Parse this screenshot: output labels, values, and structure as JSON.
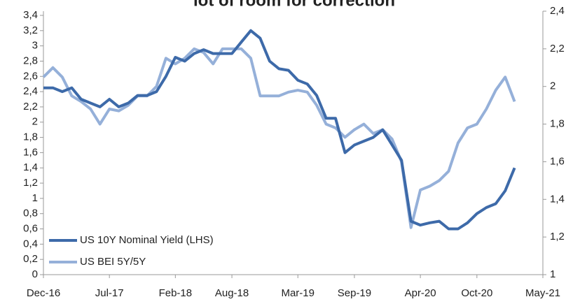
{
  "chart_data": {
    "type": "line",
    "title": "lot of room for correction",
    "categories": [
      "Dec-16",
      "Jan-17",
      "Feb-17",
      "Mar-17",
      "Apr-17",
      "May-17",
      "Jun-17",
      "Jul-17",
      "Aug-17",
      "Sep-17",
      "Oct-17",
      "Nov-17",
      "Dec-17",
      "Jan-18",
      "Feb-18",
      "Mar-18",
      "Apr-18",
      "May-18",
      "Jun-18",
      "Jul-18",
      "Aug-18",
      "Sep-18",
      "Oct-18",
      "Nov-18",
      "Dec-18",
      "Jan-19",
      "Feb-19",
      "Mar-19",
      "Apr-19",
      "May-19",
      "Jun-19",
      "Jul-19",
      "Aug-19",
      "Sep-19",
      "Oct-19",
      "Nov-19",
      "Dec-19",
      "Jan-20",
      "Feb-20",
      "Mar-20",
      "Apr-20",
      "May-20",
      "Jun-20",
      "Jul-20",
      "Aug-20",
      "Sep-20",
      "Oct-20",
      "Nov-20",
      "Dec-20",
      "Jan-21",
      "Feb-21",
      "Mar-21",
      "Apr-21",
      "May-21"
    ],
    "xticks": [
      "Dec-16",
      "Jul-17",
      "Feb-18",
      "Aug-18",
      "Mar-19",
      "Sep-19",
      "Apr-20",
      "Oct-20",
      "May-21"
    ],
    "series": [
      {
        "name": "US 10Y Nominal Yield (LHS)",
        "color": "#3d6aa9",
        "values": [
          2.45,
          2.45,
          2.4,
          2.45,
          2.3,
          2.25,
          2.2,
          2.3,
          2.2,
          2.25,
          2.35,
          2.35,
          2.4,
          2.6,
          2.85,
          2.8,
          2.9,
          2.95,
          2.9,
          2.9,
          2.9,
          3.05,
          3.2,
          3.1,
          2.8,
          2.7,
          2.68,
          2.55,
          2.5,
          2.35,
          2.05,
          2.05,
          1.6,
          1.7,
          1.75,
          1.8,
          1.9,
          1.7,
          1.5,
          0.7,
          0.65,
          0.68,
          0.7,
          0.6,
          0.6,
          0.68,
          0.8,
          0.88,
          0.93,
          1.1,
          1.4,
          null,
          null,
          null
        ]
      },
      {
        "name": "US BEI 5Y/5Y",
        "color": "#95b0d9",
        "axis": "y2",
        "values": [
          2.05,
          2.1,
          2.05,
          1.95,
          1.92,
          1.88,
          1.8,
          1.88,
          1.87,
          1.9,
          1.95,
          1.95,
          2.0,
          2.15,
          2.12,
          2.15,
          2.2,
          2.18,
          2.12,
          2.2,
          2.2,
          2.2,
          2.15,
          1.95,
          1.95,
          1.95,
          1.97,
          1.98,
          1.97,
          1.9,
          1.8,
          1.78,
          1.73,
          1.77,
          1.8,
          1.75,
          1.77,
          1.72,
          1.6,
          1.25,
          1.45,
          1.47,
          1.5,
          1.55,
          1.7,
          1.78,
          1.8,
          1.88,
          1.98,
          2.05,
          1.92,
          null,
          null,
          null
        ]
      }
    ],
    "ylim": [
      0,
      3.4
    ],
    "yticks": [
      0,
      {
        "value": 0.2,
        "label": "0,2"
      },
      {
        "value": 0.4,
        "label": "0,4"
      },
      {
        "value": 0.6,
        "label": "0,6"
      },
      {
        "value": 0.8,
        "label": "0,8"
      },
      1,
      {
        "value": 1.2,
        "label": "1,2"
      },
      {
        "value": 1.4,
        "label": "1,4"
      },
      {
        "value": 1.6,
        "label": "1,6"
      },
      {
        "value": 1.8,
        "label": "1,8"
      },
      2,
      {
        "value": 2.2,
        "label": "2,2"
      },
      {
        "value": 2.4,
        "label": "2,4"
      },
      {
        "value": 2.6,
        "label": "2,6"
      },
      {
        "value": 2.8,
        "label": "2,8"
      },
      3,
      {
        "value": 3.2,
        "label": "3,2"
      },
      {
        "value": 3.4,
        "label": "3,4"
      }
    ],
    "y2lim": [
      1,
      2.4
    ],
    "y2ticks": [
      1,
      {
        "value": 1.2,
        "label": "1,2"
      },
      {
        "value": 1.4,
        "label": "1,4"
      },
      {
        "value": 1.6,
        "label": "1,6"
      },
      {
        "value": 1.8,
        "label": "1,8"
      },
      2,
      {
        "value": 2.2,
        "label": "2,2"
      },
      {
        "value": 2.4,
        "label": "2,4"
      }
    ],
    "legend": "lower-left",
    "grid": false
  }
}
